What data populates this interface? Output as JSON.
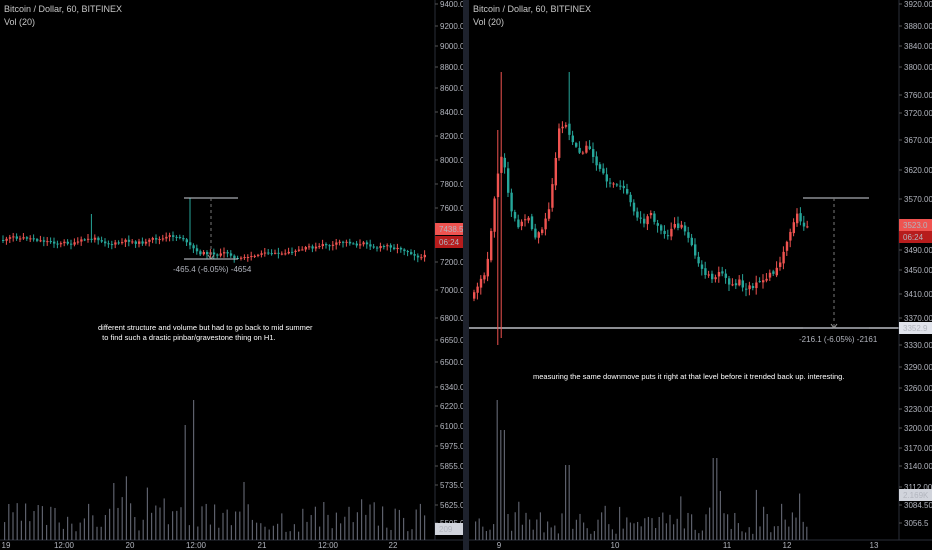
{
  "left_chart": {
    "title": "Bitcoin / Dollar, 60, BITFINEX",
    "vol_label": "Vol (20)",
    "price_ticks": [
      "9400.00",
      "9200.00",
      "9000.00",
      "8800.00",
      "8600.00",
      "8400.00",
      "8200.00",
      "8000.00",
      "7800.00",
      "7600.00",
      "7200.00",
      "7000.00",
      "6800.00",
      "6650.00",
      "6500.00",
      "6340.00",
      "6220.00",
      "6100.00",
      "5975.00",
      "5855.00",
      "5735.00",
      "5625.00",
      "5505.00"
    ],
    "time_ticks": [
      "19",
      "12:00",
      "20",
      "12:00",
      "21",
      "12:00",
      "22"
    ],
    "price_badge": "7438.5",
    "countdown_badge": "06:24",
    "volume_badge": "209",
    "measure_label": "-465.4 (-6.05%) -4654",
    "note": "different structure and volume but had to go back to mid summer\n  to find such a drastic pinbar/gravestone thing on H1."
  },
  "right_chart": {
    "title": "Bitcoin / Dollar, 60, BITFINEX",
    "vol_label": "Vol (20)",
    "price_ticks": [
      "3920.00",
      "3880.00",
      "3840.00",
      "3800.00",
      "3760.00",
      "3720.00",
      "3670.00",
      "3620.00",
      "3570.00",
      "3490.00",
      "3450.00",
      "3410.00",
      "3370.00",
      "3330.00",
      "3290.00",
      "3260.00",
      "3230.00",
      "3200.00",
      "3170.00",
      "3140.00",
      "3112.00",
      "3084.50",
      "3056.5"
    ],
    "time_ticks": [
      "9",
      "10",
      "11",
      "12",
      "13"
    ],
    "price_badge": "3523.0",
    "countdown_badge": "06:24",
    "level_badge": "3352.9",
    "volume_badge": "2.169K",
    "measure_label": "-216.1 (-6.05%) -2161",
    "note": "measuring the same downmove puts it right at that level before it trended back up. interesting."
  },
  "colors": {
    "up": "#26a69a",
    "down": "#ef5350",
    "badge_red": "#ef5350",
    "badge_dark": "#b71c1c"
  }
}
